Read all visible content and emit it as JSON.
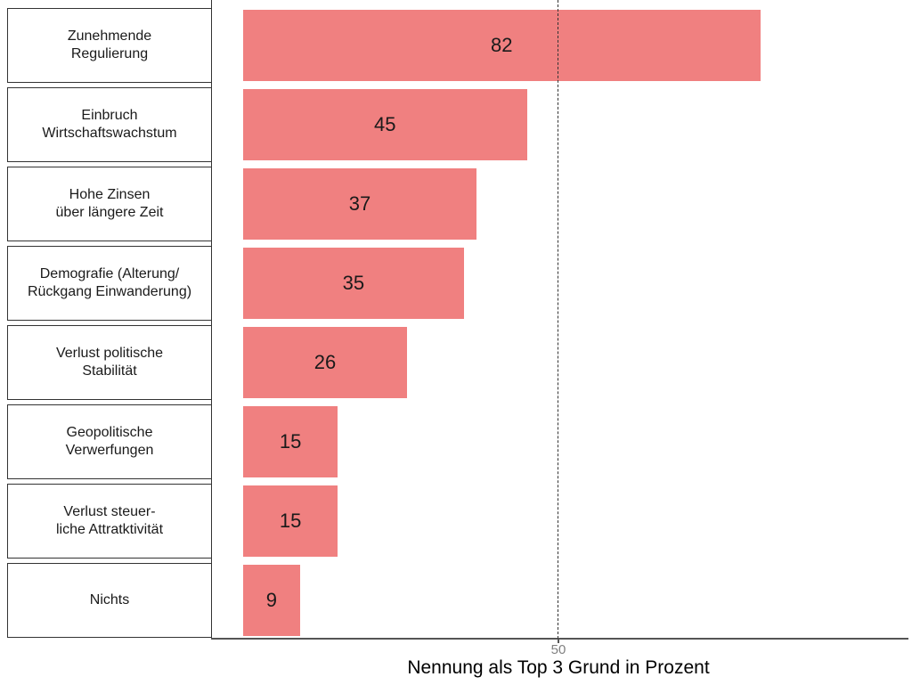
{
  "chart_data": {
    "type": "bar",
    "orientation": "horizontal",
    "categories": [
      "Zunehmende\nRegulierung",
      "Einbruch\nWirtschaftswachstum",
      "Hohe Zinsen\nüber längere Zeit",
      "Demografie (Alterung/\nRückgang Einwanderung)",
      "Verlust politische\nStabilität",
      "Geopolitische\nVerwerfungen",
      "Verlust steuer-\nliche Attratktivität",
      "Nichts"
    ],
    "values": [
      82,
      45,
      37,
      35,
      26,
      15,
      15,
      9
    ],
    "title": "",
    "xlabel": "Nennung als Top 3 Grund in Prozent",
    "ylabel": "",
    "xlim": [
      0,
      105
    ],
    "grid": false,
    "legend": "none",
    "value_labels": "centered-inside-bar",
    "x_ticks": [
      {
        "value": 50,
        "label": "50"
      }
    ],
    "reference_line": {
      "value": 50,
      "style": "dashed",
      "color": "#333333"
    },
    "bar_color": "#F08080",
    "bar_label_color": "#1a1a1a",
    "category_box_border_color": "#333333",
    "tick_label_color": "#808080",
    "axis_line_color": "#555555"
  }
}
